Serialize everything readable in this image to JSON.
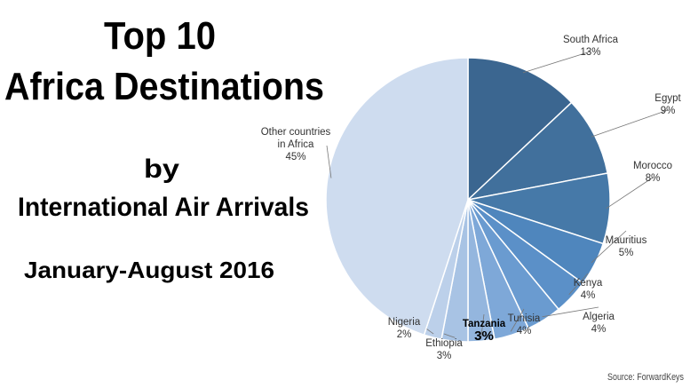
{
  "chart_data": {
    "type": "pie",
    "title": [
      "Top 10",
      "Africa Destinations",
      "by",
      "International Air Arrivals",
      "January-August 2016"
    ],
    "categories": [
      "South Africa",
      "Egypt",
      "Morocco",
      "Mauritius",
      "Kenya",
      "Algeria",
      "Tunisia",
      "Tanzania",
      "Ethiopia",
      "Nigeria",
      "Other countries in Africa"
    ],
    "values": [
      13,
      9,
      8,
      5,
      4,
      4,
      4,
      3,
      3,
      2,
      45
    ],
    "value_labels": [
      "13%",
      "9%",
      "8%",
      "5%",
      "4%",
      "4%",
      "4%",
      "3%",
      "3%",
      "2%",
      "45%"
    ],
    "colors": [
      "#3b6690",
      "#41709c",
      "#4679a8",
      "#4f86bd",
      "#5b90c8",
      "#6a9bd0",
      "#7ea8d8",
      "#94b6de",
      "#a8c3e4",
      "#bcd0ea",
      "#cedcef"
    ],
    "source": "Source: ForwardKeys"
  }
}
